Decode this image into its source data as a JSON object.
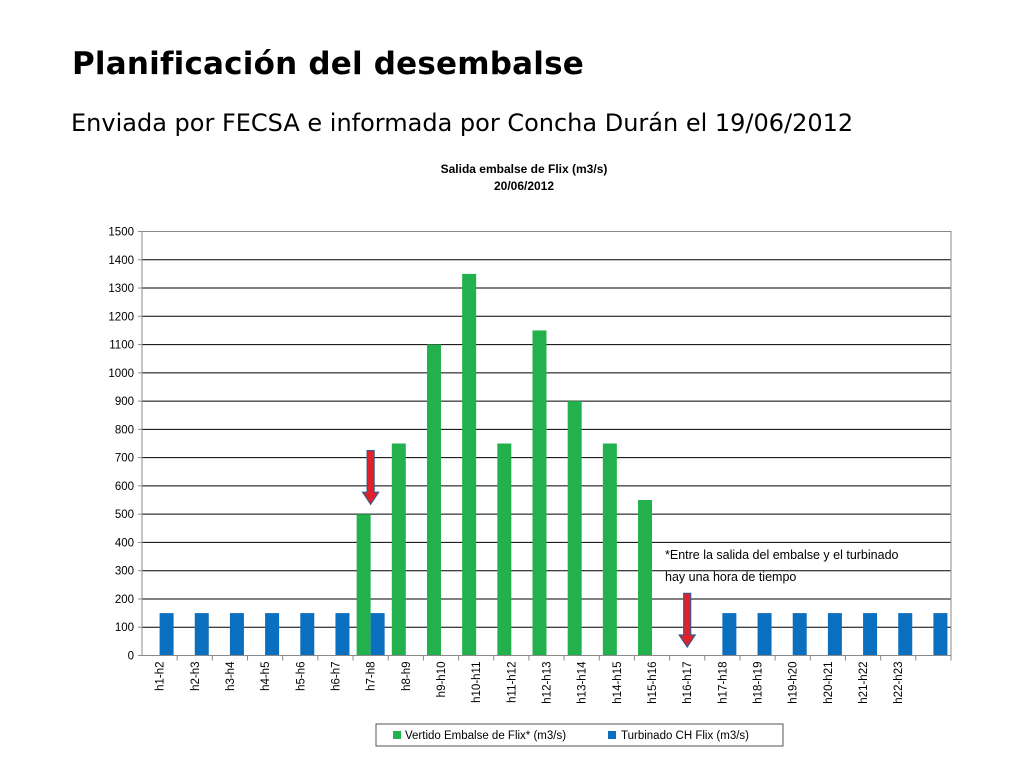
{
  "slide": {
    "title": "Planificación del desembalse",
    "subtitle": "Enviada por FECSA e informada por Concha Durán el 19/06/2012"
  },
  "colors": {
    "series_green": "#22b14c",
    "series_blue": "#0b6fc0",
    "arrow": "#e0202a",
    "arrow_outline": "#3a5a8c",
    "grid": "#000000"
  },
  "chart_data": {
    "type": "bar",
    "title": "Salida embalse de Flix (m3/s)",
    "subtitle": "20/06/2012",
    "xlabel": "",
    "ylabel": "",
    "ylim": [
      0,
      1500
    ],
    "yticks": [
      0,
      100,
      200,
      300,
      400,
      500,
      600,
      700,
      800,
      900,
      1000,
      1100,
      1200,
      1300,
      1400,
      1500
    ],
    "grid": true,
    "legend_position": "bottom",
    "categories": [
      "h1-h2",
      "h2-h3",
      "h3-h4",
      "h4-h5",
      "h5-h6",
      "h6-h7",
      "h7-h8",
      "h8-h9",
      "h9-h10",
      "h10-h11",
      "h11-h12",
      "h12-h13",
      "h13-h14",
      "h14-h15",
      "h15-h16",
      "h16-h17",
      "h17-h18",
      "h18-h19",
      "h19-h20",
      "h20-h21",
      "h21-h22",
      "h22-h23",
      ""
    ],
    "series": [
      {
        "name": "Vertido Embalse de Flix* (m3/s)",
        "color": "#22b14c",
        "values": [
          0,
          0,
          0,
          0,
          0,
          0,
          500,
          750,
          1100,
          1350,
          750,
          1150,
          900,
          750,
          550,
          0,
          0,
          0,
          0,
          0,
          0,
          0,
          0
        ]
      },
      {
        "name": "Turbinado CH Flix (m3/s)",
        "color": "#0b6fc0",
        "values": [
          150,
          150,
          150,
          150,
          150,
          150,
          150,
          0,
          0,
          0,
          0,
          0,
          0,
          0,
          0,
          0,
          150,
          150,
          150,
          150,
          150,
          150,
          150
        ]
      }
    ],
    "annotations": [
      {
        "type": "arrow-down",
        "category": "h7-h8",
        "from": 725,
        "to": 535
      },
      {
        "type": "arrow-down",
        "category": "h16-h17",
        "from": 220,
        "to": 30
      },
      {
        "type": "text",
        "lines": [
          "*Entre la salida del embalse y el turbinado",
          "hay una hora de tiempo"
        ]
      }
    ]
  }
}
